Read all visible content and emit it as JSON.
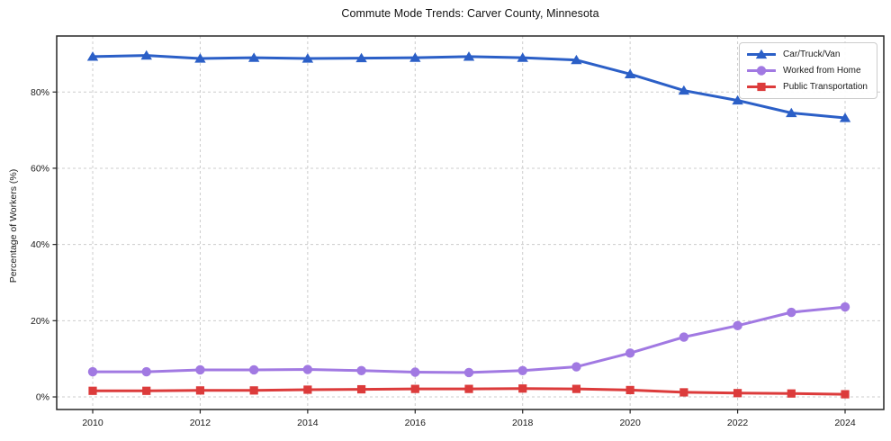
{
  "chart_data": {
    "type": "line",
    "title": "Commute Mode Trends: Carver County, Minnesota",
    "xlabel": "",
    "ylabel": "Percentage of Workers (%)",
    "x": [
      2010,
      2011,
      2012,
      2013,
      2014,
      2015,
      2016,
      2017,
      2018,
      2019,
      2020,
      2021,
      2022,
      2023,
      2024
    ],
    "series": [
      {
        "name": "Car/Truck/Van",
        "color": "#2b5fc7",
        "marker": "triangle",
        "values": [
          89.3,
          89.6,
          88.8,
          89.0,
          88.8,
          88.9,
          89.0,
          89.3,
          89.0,
          88.4,
          84.7,
          80.4,
          77.8,
          74.5,
          73.2
        ]
      },
      {
        "name": "Worked from Home",
        "color": "#a179e2",
        "marker": "circle",
        "values": [
          6.6,
          6.6,
          7.1,
          7.1,
          7.2,
          6.9,
          6.5,
          6.4,
          6.9,
          7.9,
          11.5,
          15.7,
          18.7,
          22.2,
          23.6
        ]
      },
      {
        "name": "Public Transportation",
        "color": "#dc3b3b",
        "marker": "square",
        "values": [
          1.6,
          1.6,
          1.7,
          1.7,
          1.9,
          2.0,
          2.1,
          2.1,
          2.2,
          2.1,
          1.8,
          1.2,
          1.0,
          0.9,
          0.7
        ]
      }
    ],
    "x_ticks": [
      2010,
      2012,
      2014,
      2016,
      2018,
      2020,
      2022,
      2024
    ],
    "y_ticks": [
      0,
      20,
      40,
      60,
      80
    ],
    "y_tick_suffix": "%",
    "xlim": [
      2009.33,
      2024.72
    ],
    "ylim": [
      -3.3,
      94.7
    ],
    "grid": true,
    "legend_position": "upper right"
  },
  "colors": {
    "background": "#ffffff",
    "gridline": "#cccccc",
    "axis_frame": "#262626",
    "car_truck_van": "#2b5fc7",
    "worked_from_home": "#a179e2",
    "public_transportation": "#dc3b3b"
  }
}
